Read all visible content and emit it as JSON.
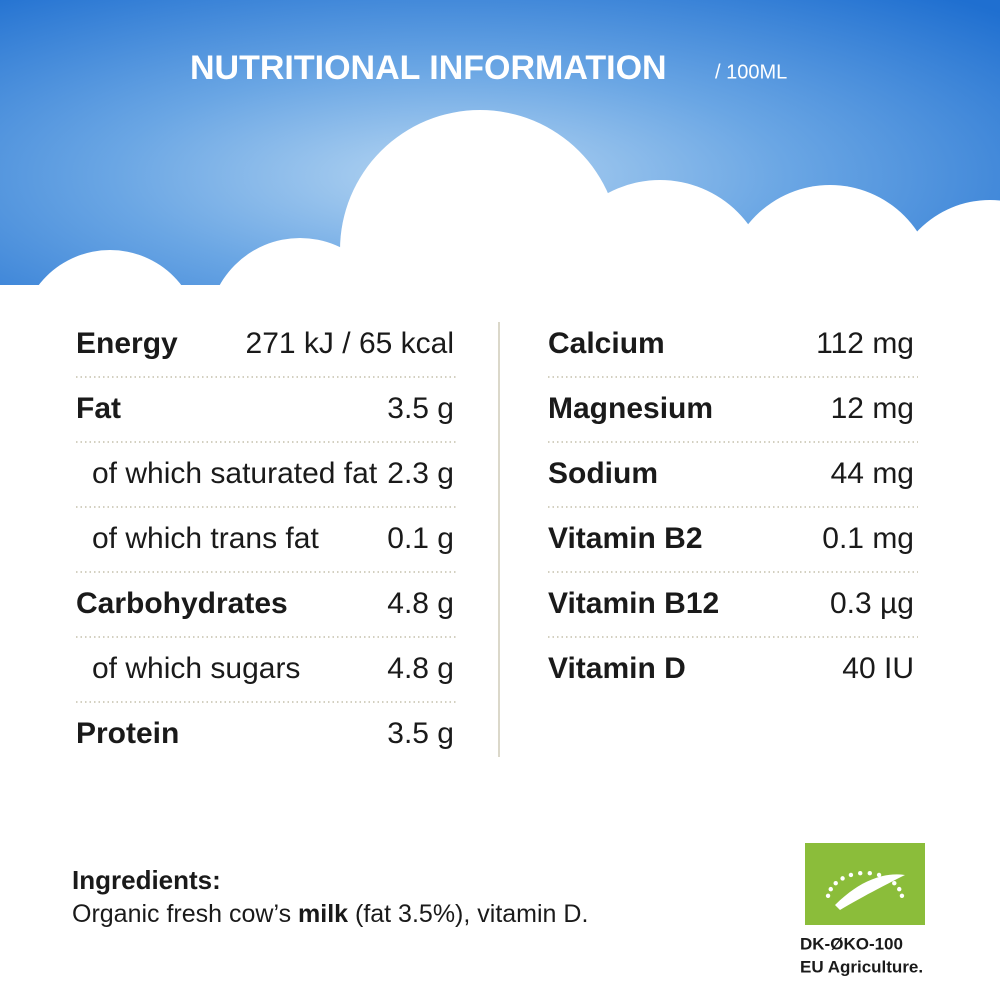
{
  "header": {
    "title": "NUTRITIONAL INFORMATION",
    "unit": "/ 100ML"
  },
  "left_table": {
    "rows": [
      {
        "name": "Energy",
        "value": "271 kJ / 65 kcal",
        "bold": true
      },
      {
        "name": "Fat",
        "value": "3.5 g",
        "bold": true
      },
      {
        "name": "of which saturated fat",
        "value": "2.3 g",
        "bold": false
      },
      {
        "name": "of which trans fat",
        "value": "0.1 g",
        "bold": false
      },
      {
        "name": "Carbohydrates",
        "value": "4.8 g",
        "bold": true
      },
      {
        "name": "of which sugars",
        "value": "4.8 g",
        "bold": false
      },
      {
        "name": "Protein",
        "value": "3.5 g",
        "bold": true
      }
    ]
  },
  "right_table": {
    "rows": [
      {
        "name": "Calcium",
        "value": "112 mg",
        "bold": true
      },
      {
        "name": "Magnesium",
        "value": "12 mg",
        "bold": true
      },
      {
        "name": "Sodium",
        "value": "44 mg",
        "bold": true
      },
      {
        "name": "Vitamin B2",
        "value": "0.1 mg",
        "bold": true
      },
      {
        "name": "Vitamin B12",
        "value": "0.3 µg",
        "bold": true
      },
      {
        "name": "Vitamin D",
        "value": "40 IU",
        "bold": true
      }
    ]
  },
  "ingredients": {
    "label": "Ingredients:",
    "text_before": "Organic fresh cow’s ",
    "highlight": "milk",
    "text_after": " (fat 3.5%), vitamin D."
  },
  "certification": {
    "code": "DK-ØKO-100",
    "origin": "EU Agriculture."
  }
}
